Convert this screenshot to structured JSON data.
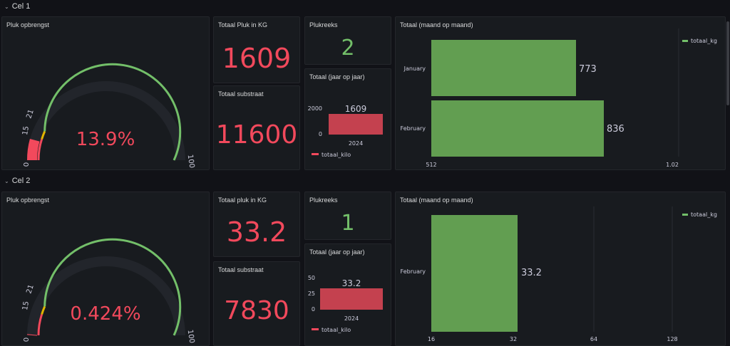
{
  "rows": [
    {
      "title": "Cel 1",
      "gauge": {
        "title": "Pluk opbrengst",
        "value": "13.9%",
        "ticks": [
          "0",
          "15",
          "21",
          "100"
        ],
        "fraction": 0.139
      },
      "total_kg": {
        "title": "Totaal Pluk in KG",
        "value": "1609"
      },
      "substrate": {
        "title": "Totaal substraat",
        "value": "11600"
      },
      "plukreeks": {
        "title": "Plukreeks",
        "value": "2"
      },
      "yoy": {
        "title": "Totaal (jaar op jaar)",
        "ticks": [
          "2000",
          "0"
        ],
        "category": "2024",
        "value_label": "1609",
        "legend": "totaal_kilo"
      },
      "mom": {
        "title": "Totaal (maand op maand)",
        "legend": "totaal_kg",
        "bars": [
          {
            "label": "January",
            "value": "773"
          },
          {
            "label": "February",
            "value": "836"
          }
        ],
        "xticks": [
          "512",
          "1.02"
        ]
      }
    },
    {
      "title": "Cel 2",
      "gauge": {
        "title": "Pluk opbrengst",
        "value": "0.424%",
        "ticks": [
          "0",
          "15",
          "21",
          "100"
        ],
        "fraction": 0.00424
      },
      "total_kg": {
        "title": "Totaal pluk in KG",
        "value": "33.2"
      },
      "substrate": {
        "title": "Totaal substraat",
        "value": "7830"
      },
      "plukreeks": {
        "title": "Plukreeks",
        "value": "1"
      },
      "yoy": {
        "title": "Totaal (jaar op jaar)",
        "ticks": [
          "50",
          "25",
          "0"
        ],
        "category": "2024",
        "value_label": "33.2",
        "legend": "totaal_kilo"
      },
      "mom": {
        "title": "Totaal (maand op maand)",
        "legend": "totaal_kg",
        "bars": [
          {
            "label": "February",
            "value": "33.2"
          }
        ],
        "xticks": [
          "16",
          "32",
          "64",
          "128"
        ]
      }
    }
  ],
  "colors": {
    "red": "#f2495c",
    "green": "#73bf69",
    "bar_green": "#629e51",
    "bar_red": "#c4414f",
    "track": "#22252b"
  }
}
